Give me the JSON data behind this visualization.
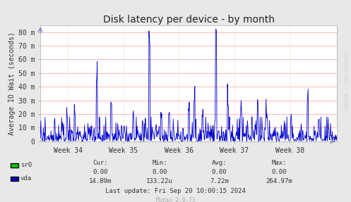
{
  "title": "Disk latency per device - by month",
  "ylabel": "Average IO Wait (seconds)",
  "background_color": "#e8e8e8",
  "plot_bg_color": "#ffffff",
  "grid_color": "#ff9999",
  "line_color_vda": "#0000cc",
  "line_color_sr0": "#00cc00",
  "ytick_labels": [
    "0",
    "10 m",
    "20 m",
    "30 m",
    "40 m",
    "50 m",
    "60 m",
    "70 m",
    "80 m"
  ],
  "ytick_values": [
    0,
    0.01,
    0.02,
    0.03,
    0.04,
    0.05,
    0.06,
    0.07,
    0.08
  ],
  "ylim": [
    0,
    0.085
  ],
  "xtick_labels": [
    "Week 34",
    "Week 35",
    "Week 36",
    "Week 37",
    "Week 38"
  ],
  "week_positions": [
    34,
    35,
    36,
    37,
    38
  ],
  "legend_entries": [
    "sr0",
    "vda"
  ],
  "legend_colors": [
    "#00cc00",
    "#0000cc"
  ],
  "stats_header": [
    "Cur:",
    "Min:",
    "Avg:",
    "Max:"
  ],
  "stats_sr0": [
    "0.00",
    "0.00",
    "0.00",
    "0.00"
  ],
  "stats_vda": [
    "14.89m",
    "133.22u",
    "7.22m",
    "264.97m"
  ],
  "last_update": "Last update: Fri Sep 20 10:00:15 2024",
  "munin_version": "Munin 2.0.73",
  "rrdtool_label": "RRDTOOL / TOBI OETIKER",
  "title_fontsize": 10,
  "axis_fontsize": 7,
  "annotation_fontsize": 6.5
}
